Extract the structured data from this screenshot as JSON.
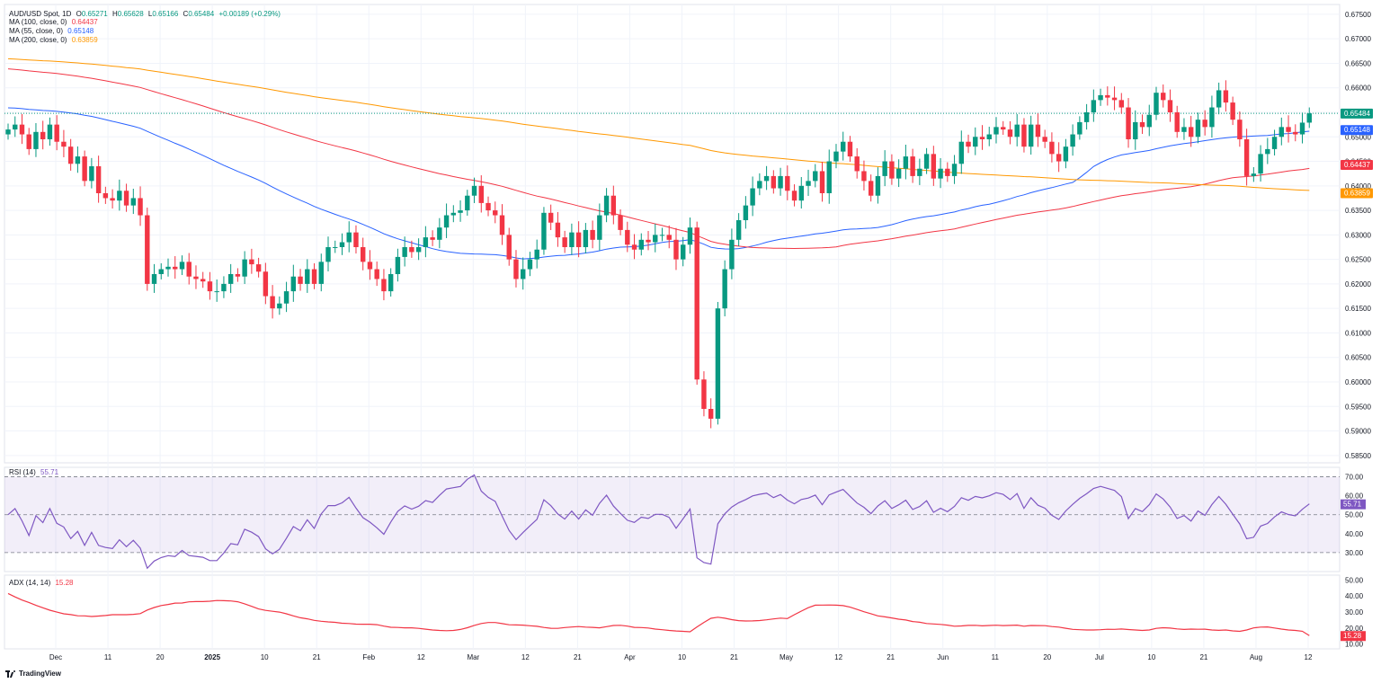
{
  "main_legend": {
    "symbol": "AUD/USD Spot, 1D",
    "open_label": "O",
    "open": "0.65271",
    "high_label": "H",
    "high": "0.65628",
    "low_label": "L",
    "low": "0.65166",
    "close_label": "C",
    "close": "0.65484",
    "change": "+0.00189 (+0.29%)"
  },
  "indicators": [
    {
      "name": "MA (100, close, 0)",
      "value": "0.64437",
      "color": "#f23645"
    },
    {
      "name": "MA (55, close, 0)",
      "value": "0.65148",
      "color": "#2962ff"
    },
    {
      "name": "MA (200, close, 0)",
      "value": "0.63859",
      "color": "#ff9800"
    }
  ],
  "rsi_legend": {
    "name": "RSI (14)",
    "value": "55.71",
    "color": "#7e57c2"
  },
  "adx_legend": {
    "name": "ADX (14, 14)",
    "value": "15.28",
    "color": "#f23645"
  },
  "brand": "TradingView",
  "colors": {
    "up": "#089981",
    "down": "#f23645",
    "grid": "#f0f3fa",
    "axis_text": "#131722"
  },
  "chart_data": {
    "type": "candlestick",
    "title": "AUD/USD Spot, 1D",
    "price_axis_ticks": [
      "0.67500",
      "0.67000",
      "0.66500",
      "0.66000",
      "0.65500",
      "0.65000",
      "0.64500",
      "0.64000",
      "0.63500",
      "0.63000",
      "0.62500",
      "0.62000",
      "0.61500",
      "0.61000",
      "0.60500",
      "0.60000",
      "0.59500",
      "0.59000",
      "0.58500"
    ],
    "ylim": [
      0.5835,
      0.677
    ],
    "x_labels": [
      "Dec",
      "11",
      "20",
      "2025",
      "10",
      "21",
      "Feb",
      "12",
      "Mar",
      "12",
      "21",
      "Apr",
      "10",
      "21",
      "May",
      "12",
      "21",
      "Jun",
      "11",
      "20",
      "Jul",
      "10",
      "21",
      "Aug",
      "12"
    ],
    "last_price_labels": [
      {
        "label": "0.65484",
        "value": 0.65484,
        "color": "#089981"
      },
      {
        "label": "0.65148",
        "value": 0.65148,
        "color": "#2962ff"
      },
      {
        "label": "0.64437",
        "value": 0.64437,
        "color": "#f23645"
      },
      {
        "label": "0.63859",
        "value": 0.63859,
        "color": "#ff9800"
      }
    ],
    "candles_close": [
      0.6515,
      0.6525,
      0.6505,
      0.6475,
      0.651,
      0.6495,
      0.6525,
      0.649,
      0.648,
      0.6445,
      0.646,
      0.641,
      0.644,
      0.6385,
      0.6375,
      0.637,
      0.639,
      0.636,
      0.6375,
      0.634,
      0.62,
      0.622,
      0.623,
      0.6235,
      0.623,
      0.6245,
      0.6215,
      0.621,
      0.6205,
      0.6185,
      0.6185,
      0.62,
      0.622,
      0.6215,
      0.625,
      0.624,
      0.6225,
      0.6175,
      0.615,
      0.616,
      0.6185,
      0.6215,
      0.62,
      0.623,
      0.62,
      0.6245,
      0.6275,
      0.6275,
      0.6285,
      0.6305,
      0.6275,
      0.6245,
      0.623,
      0.621,
      0.6185,
      0.622,
      0.6255,
      0.6275,
      0.6265,
      0.6275,
      0.6295,
      0.629,
      0.6315,
      0.634,
      0.6345,
      0.635,
      0.638,
      0.64,
      0.6365,
      0.635,
      0.634,
      0.63,
      0.625,
      0.621,
      0.623,
      0.625,
      0.627,
      0.6345,
      0.6325,
      0.6295,
      0.6275,
      0.6305,
      0.6275,
      0.631,
      0.629,
      0.634,
      0.638,
      0.634,
      0.631,
      0.628,
      0.627,
      0.629,
      0.6285,
      0.63,
      0.63,
      0.629,
      0.625,
      0.628,
      0.6315,
      0.6005,
      0.5945,
      0.5925,
      0.615,
      0.623,
      0.629,
      0.633,
      0.636,
      0.6395,
      0.641,
      0.642,
      0.6395,
      0.642,
      0.639,
      0.637,
      0.64,
      0.641,
      0.643,
      0.6385,
      0.645,
      0.647,
      0.649,
      0.646,
      0.643,
      0.641,
      0.638,
      0.642,
      0.645,
      0.6415,
      0.6435,
      0.646,
      0.642,
      0.6435,
      0.6465,
      0.6415,
      0.6435,
      0.642,
      0.6445,
      0.649,
      0.648,
      0.65,
      0.6495,
      0.6505,
      0.652,
      0.6515,
      0.65,
      0.6525,
      0.648,
      0.6525,
      0.65,
      0.649,
      0.6465,
      0.645,
      0.648,
      0.6505,
      0.653,
      0.655,
      0.6575,
      0.6585,
      0.658,
      0.6575,
      0.656,
      0.6495,
      0.653,
      0.652,
      0.6545,
      0.659,
      0.6575,
      0.655,
      0.651,
      0.652,
      0.65,
      0.6535,
      0.652,
      0.656,
      0.6595,
      0.657,
      0.6535,
      0.6495,
      0.642,
      0.6425,
      0.6465,
      0.6475,
      0.65,
      0.652,
      0.651,
      0.6505,
      0.6529,
      0.6548
    ],
    "rsi": {
      "value": 55.71,
      "ylim": [
        20,
        75
      ],
      "levels": [
        30,
        50,
        70
      ],
      "ticks": [
        "70.00",
        "60.00",
        "50.00",
        "40.00",
        "30.00"
      ]
    },
    "adx": {
      "value": 15.28,
      "ylim": [
        7,
        53
      ],
      "ticks": [
        "50.00",
        "40.00",
        "30.00",
        "20.00",
        "10.00"
      ]
    }
  }
}
